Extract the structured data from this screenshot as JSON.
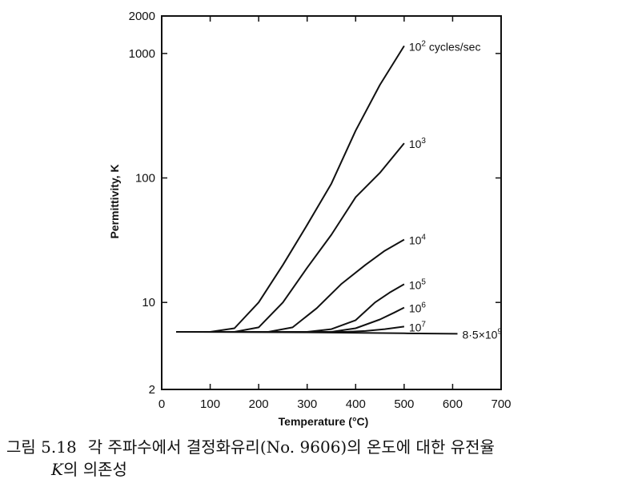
{
  "chart_data": {
    "type": "line",
    "xlabel": "Temperature (°C)",
    "ylabel": "Permittivity, K",
    "x_scale": "linear",
    "y_scale": "log",
    "xlim": [
      0,
      700
    ],
    "ylim": [
      2,
      2000
    ],
    "x_ticks": [
      0,
      100,
      200,
      300,
      400,
      500,
      600,
      700
    ],
    "y_ticks": [
      2,
      10,
      100,
      1000,
      2000
    ],
    "y_tick_labels": [
      "2",
      "10",
      "100",
      "1000",
      "2000"
    ],
    "grid": false,
    "series": [
      {
        "label_parts": [
          "10",
          "2",
          " cycles/sec"
        ],
        "points": [
          [
            30,
            5.8
          ],
          [
            100,
            5.8
          ],
          [
            150,
            6.2
          ],
          [
            200,
            10
          ],
          [
            250,
            20
          ],
          [
            300,
            42
          ],
          [
            350,
            90
          ],
          [
            400,
            240
          ],
          [
            450,
            560
          ],
          [
            500,
            1150
          ]
        ]
      },
      {
        "label_parts": [
          "10",
          "3",
          ""
        ],
        "points": [
          [
            30,
            5.8
          ],
          [
            150,
            5.8
          ],
          [
            200,
            6.3
          ],
          [
            250,
            10
          ],
          [
            300,
            19
          ],
          [
            350,
            35
          ],
          [
            400,
            70
          ],
          [
            450,
            110
          ],
          [
            500,
            190
          ]
        ]
      },
      {
        "label_parts": [
          "10",
          "4",
          ""
        ],
        "points": [
          [
            30,
            5.8
          ],
          [
            220,
            5.8
          ],
          [
            270,
            6.3
          ],
          [
            320,
            9
          ],
          [
            370,
            14
          ],
          [
            420,
            20
          ],
          [
            460,
            26
          ],
          [
            500,
            32
          ]
        ]
      },
      {
        "label_parts": [
          "10",
          "5",
          ""
        ],
        "points": [
          [
            30,
            5.8
          ],
          [
            300,
            5.8
          ],
          [
            350,
            6.1
          ],
          [
            400,
            7.2
          ],
          [
            440,
            10
          ],
          [
            470,
            12
          ],
          [
            500,
            14
          ]
        ]
      },
      {
        "label_parts": [
          "10",
          "6",
          ""
        ],
        "points": [
          [
            30,
            5.8
          ],
          [
            350,
            5.8
          ],
          [
            400,
            6.2
          ],
          [
            450,
            7.3
          ],
          [
            480,
            8.3
          ],
          [
            500,
            9.1
          ]
        ]
      },
      {
        "label_parts": [
          "10",
          "7",
          ""
        ],
        "points": [
          [
            30,
            5.8
          ],
          [
            380,
            5.8
          ],
          [
            420,
            5.9
          ],
          [
            460,
            6.1
          ],
          [
            500,
            6.4
          ]
        ]
      },
      {
        "label_parts": [
          "8·5×10",
          "9",
          ""
        ],
        "points": [
          [
            30,
            5.8
          ],
          [
            300,
            5.75
          ],
          [
            500,
            5.65
          ],
          [
            610,
            5.6
          ]
        ]
      }
    ]
  },
  "caption": {
    "figure_number": "그림 5.18",
    "text_line1": "각 주파수에서 결정화유리(No. 9606)의 온도에 대한 유전율",
    "text_k": "K",
    "text_line2": "의 의존성"
  }
}
